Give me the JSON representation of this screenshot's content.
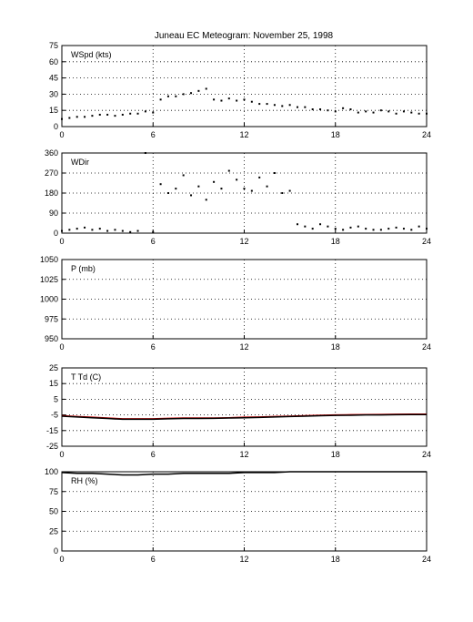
{
  "chart_data": {
    "type": "scatter",
    "title": "Juneau EC Meteogram:  November 25, 1998",
    "x_ticks": [
      0,
      6,
      12,
      18,
      24
    ],
    "xlim": [
      0,
      24
    ],
    "grid": true,
    "panels": [
      {
        "id": "wspd",
        "label": "WSpd (kts)",
        "type": "scatter",
        "ylim": [
          0,
          75
        ],
        "y_ticks": [
          0,
          15,
          30,
          45,
          60,
          75
        ],
        "series": [
          {
            "color": "#000000",
            "x": [
              0,
              0.5,
              1,
              1.5,
              2,
              2.5,
              3,
              3.5,
              4,
              4.5,
              5,
              5.5,
              6,
              6.5,
              7,
              7.5,
              8,
              8.5,
              9,
              9.5,
              10,
              10.5,
              11,
              11.5,
              12,
              12.5,
              13,
              13.5,
              14,
              14.5,
              15,
              15.5,
              16,
              16.5,
              17,
              17.5,
              18,
              18.5,
              19,
              19.5,
              20,
              20.5,
              21,
              21.5,
              22,
              22.5,
              23,
              23.5,
              24
            ],
            "y": [
              7,
              8,
              9,
              9,
              10,
              11,
              11,
              10,
              11,
              12,
              12,
              14,
              13,
              25,
              28,
              28,
              30,
              31,
              33,
              35,
              25,
              24,
              26,
              24,
              25,
              23,
              21,
              21,
              20,
              19,
              20,
              18,
              18,
              16,
              16,
              15,
              14,
              17,
              16,
              13,
              14,
              13,
              15,
              14,
              12,
              14,
              13,
              12,
              12
            ]
          }
        ]
      },
      {
        "id": "wdir",
        "label": "WDir",
        "type": "scatter",
        "ylim": [
          0,
          360
        ],
        "y_ticks": [
          0,
          90,
          180,
          270,
          360
        ],
        "series": [
          {
            "color": "#000000",
            "x": [
              0,
              0.5,
              1,
              1.5,
              2,
              2.5,
              3,
              3.5,
              4,
              4.5,
              5,
              5.5,
              6,
              6.5,
              7,
              7.5,
              8,
              8.5,
              9,
              9.5,
              10,
              10.5,
              11,
              11.5,
              12,
              12.5,
              13,
              13.5,
              14,
              14.5,
              15,
              15.5,
              16,
              16.5,
              17,
              17.5,
              18,
              18.5,
              19,
              19.5,
              20,
              20.5,
              21,
              21.5,
              22,
              22.5,
              23,
              23.5,
              24
            ],
            "y": [
              10,
              15,
              20,
              25,
              15,
              20,
              10,
              15,
              10,
              5,
              10,
              360,
              5,
              220,
              180,
              200,
              260,
              170,
              210,
              150,
              230,
              200,
              280,
              240,
              200,
              190,
              250,
              210,
              270,
              180,
              190,
              40,
              30,
              20,
              40,
              30,
              20,
              15,
              25,
              30,
              20,
              15,
              15,
              20,
              25,
              20,
              15,
              30,
              20
            ]
          }
        ]
      },
      {
        "id": "pres",
        "label": "P (mb)",
        "type": "line",
        "ylim": [
          950,
          1050
        ],
        "y_ticks": [
          950,
          975,
          1000,
          1025,
          1050
        ],
        "series": []
      },
      {
        "id": "temp",
        "label": "T Td (C)",
        "type": "line",
        "ylim": [
          -25,
          25
        ],
        "y_ticks": [
          -25,
          -15,
          -5,
          5,
          15,
          25
        ],
        "series": [
          {
            "color": "#cc0000",
            "x": [
              0,
              1,
              2,
              3,
              4,
              5,
              6,
              7,
              8,
              9,
              10,
              11,
              12,
              13,
              14,
              15,
              16,
              17,
              18,
              19,
              20,
              21,
              22,
              23,
              24
            ],
            "y": [
              -5.5,
              -6,
              -6.5,
              -7,
              -7.5,
              -7.5,
              -7.5,
              -7.2,
              -7,
              -7,
              -7,
              -6.8,
              -6.5,
              -6.3,
              -6,
              -5.8,
              -5.5,
              -5.2,
              -5,
              -4.9,
              -4.8,
              -4.7,
              -4.6,
              -4.5,
              -4.5
            ]
          },
          {
            "color": "#000000",
            "x": [
              0,
              1,
              2,
              3,
              4,
              5,
              6,
              7,
              8,
              9,
              10,
              11,
              12,
              13,
              14,
              15,
              16,
              17,
              18,
              19,
              20,
              21,
              22,
              23,
              24
            ],
            "y": [
              -5.8,
              -6.3,
              -6.8,
              -7.3,
              -7.8,
              -7.8,
              -7.8,
              -7.5,
              -7.3,
              -7.3,
              -7.2,
              -7,
              -6.8,
              -6.6,
              -6.3,
              -6,
              -5.8,
              -5.5,
              -5.3,
              -5.2,
              -5,
              -5,
              -4.9,
              -4.8,
              -4.8
            ]
          }
        ]
      },
      {
        "id": "rh",
        "label": "RH (%)",
        "type": "line",
        "ylim": [
          0,
          100
        ],
        "y_ticks": [
          0,
          25,
          50,
          75,
          100
        ],
        "series": [
          {
            "color": "#000000",
            "x": [
              0,
              1,
              2,
              3,
              4,
              5,
              6,
              7,
              8,
              9,
              10,
              11,
              12,
              13,
              14,
              15,
              16,
              17,
              18,
              19,
              20,
              21,
              22,
              23,
              24
            ],
            "y": [
              99,
              98,
              98,
              97,
              96,
              96,
              97,
              97,
              98,
              98,
              98,
              98,
              99,
              99,
              99,
              100,
              100,
              100,
              100,
              100,
              100,
              100,
              100,
              100,
              100
            ]
          }
        ]
      }
    ]
  }
}
